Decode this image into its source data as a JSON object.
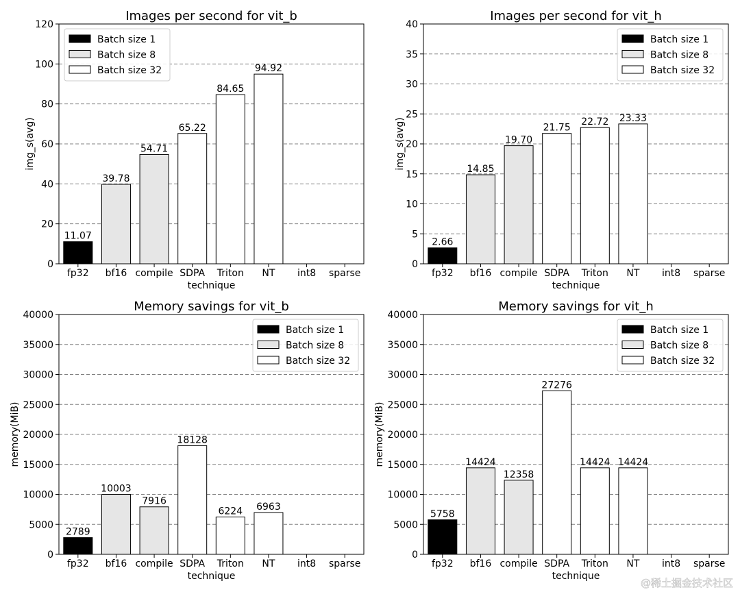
{
  "legend_labels": [
    "Batch size 1",
    "Batch size 8",
    "Batch size 32"
  ],
  "series_colors": {
    "Batch size 1": "#000000",
    "Batch size 8": "#e6e6e6",
    "Batch size 32": "#ffffff"
  },
  "watermark": "@稀土掘金技术社区",
  "chart_data": [
    {
      "type": "bar",
      "title": "Images per second for vit_b",
      "xlabel": "technique",
      "ylabel": "img_s(avg)",
      "ylim": [
        0,
        120
      ],
      "yticks": [
        0,
        20,
        40,
        60,
        80,
        100,
        120
      ],
      "grid": "y dashed",
      "legend_position": "top-left",
      "categories": [
        "fp32",
        "bf16",
        "compile",
        "SDPA",
        "Triton",
        "NT",
        "int8",
        "sparse"
      ],
      "series": [
        {
          "name": "Batch size 1",
          "values": [
            11.07,
            null,
            null,
            null,
            null,
            null,
            null,
            null
          ]
        },
        {
          "name": "Batch size 8",
          "values": [
            null,
            39.78,
            54.71,
            null,
            null,
            null,
            null,
            null
          ]
        },
        {
          "name": "Batch size 32",
          "values": [
            null,
            null,
            null,
            65.22,
            84.65,
            94.92,
            null,
            null
          ]
        }
      ],
      "data_labels": [
        "11.07",
        "39.78",
        "54.71",
        "65.22",
        "84.65",
        "94.92",
        "",
        ""
      ]
    },
    {
      "type": "bar",
      "title": "Images per second for vit_h",
      "xlabel": "technique",
      "ylabel": "img_s(avg)",
      "ylim": [
        0,
        40
      ],
      "yticks": [
        0,
        5,
        10,
        15,
        20,
        25,
        30,
        35,
        40
      ],
      "grid": "y dashed",
      "legend_position": "top-right",
      "categories": [
        "fp32",
        "bf16",
        "compile",
        "SDPA",
        "Triton",
        "NT",
        "int8",
        "sparse"
      ],
      "series": [
        {
          "name": "Batch size 1",
          "values": [
            2.66,
            null,
            null,
            null,
            null,
            null,
            null,
            null
          ]
        },
        {
          "name": "Batch size 8",
          "values": [
            null,
            14.85,
            19.7,
            null,
            null,
            null,
            null,
            null
          ]
        },
        {
          "name": "Batch size 32",
          "values": [
            null,
            null,
            null,
            21.75,
            22.72,
            23.33,
            null,
            null
          ]
        }
      ],
      "data_labels": [
        "2.66",
        "14.85",
        "19.70",
        "21.75",
        "22.72",
        "23.33",
        "",
        ""
      ]
    },
    {
      "type": "bar",
      "title": "Memory savings for vit_b",
      "xlabel": "technique",
      "ylabel": "memory(MiB)",
      "ylim": [
        0,
        40000
      ],
      "yticks": [
        0,
        5000,
        10000,
        15000,
        20000,
        25000,
        30000,
        35000,
        40000
      ],
      "grid": "y dashed",
      "legend_position": "top-right",
      "categories": [
        "fp32",
        "bf16",
        "compile",
        "SDPA",
        "Triton",
        "NT",
        "int8",
        "sparse"
      ],
      "series": [
        {
          "name": "Batch size 1",
          "values": [
            2789,
            null,
            null,
            null,
            null,
            null,
            null,
            null
          ]
        },
        {
          "name": "Batch size 8",
          "values": [
            null,
            10003,
            7916,
            null,
            null,
            null,
            null,
            null
          ]
        },
        {
          "name": "Batch size 32",
          "values": [
            null,
            null,
            null,
            18128,
            6224,
            6963,
            null,
            null
          ]
        }
      ],
      "data_labels": [
        "2789",
        "10003",
        "7916",
        "18128",
        "6224",
        "6963",
        "",
        ""
      ]
    },
    {
      "type": "bar",
      "title": "Memory savings for vit_h",
      "xlabel": "technique",
      "ylabel": "memory(MiB)",
      "ylim": [
        0,
        40000
      ],
      "yticks": [
        0,
        5000,
        10000,
        15000,
        20000,
        25000,
        30000,
        35000,
        40000
      ],
      "grid": "y dashed",
      "legend_position": "top-right",
      "categories": [
        "fp32",
        "bf16",
        "compile",
        "SDPA",
        "Triton",
        "NT",
        "int8",
        "sparse"
      ],
      "series": [
        {
          "name": "Batch size 1",
          "values": [
            5758,
            null,
            null,
            null,
            null,
            null,
            null,
            null
          ]
        },
        {
          "name": "Batch size 8",
          "values": [
            null,
            14424,
            12358,
            null,
            null,
            null,
            null,
            null
          ]
        },
        {
          "name": "Batch size 32",
          "values": [
            null,
            null,
            null,
            27276,
            14424,
            14424,
            null,
            null
          ]
        }
      ],
      "data_labels": [
        "5758",
        "14424",
        "12358",
        "27276",
        "14424",
        "14424",
        "",
        ""
      ]
    }
  ]
}
